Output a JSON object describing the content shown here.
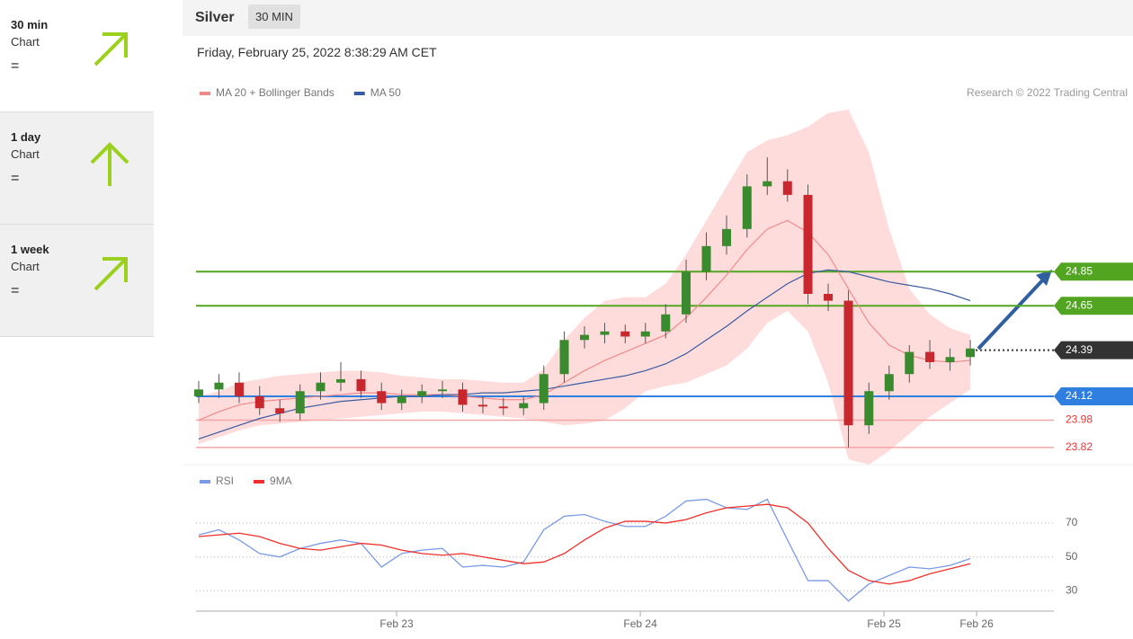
{
  "sidebar": [
    {
      "period": "30 min",
      "label": "Chart",
      "status": "="
    },
    {
      "period": "1 day",
      "label": "Chart",
      "status": "="
    },
    {
      "period": "1 week",
      "label": "Chart",
      "status": "="
    }
  ],
  "header": {
    "instrument": "Silver",
    "interval": "30 MIN",
    "timestamp": "Friday, February 25, 2022 8:38:29 AM CET"
  },
  "chart_data": [
    {
      "type": "candlestick",
      "credit": "Research © 2022 Trading Central",
      "x": [
        0.188,
        0.271,
        0.354,
        0.438,
        0.521,
        0.604,
        0.688,
        0.771,
        0.854,
        0.938,
        1.021,
        1.104,
        1.188,
        1.271,
        1.354,
        1.438,
        1.521,
        1.604,
        1.688,
        1.771,
        1.854,
        1.938,
        2.021,
        2.104,
        2.188,
        2.271,
        2.354,
        2.438,
        2.521,
        2.604,
        2.688,
        2.771,
        2.854,
        2.938,
        3.021,
        3.104,
        3.188,
        3.271,
        3.354
      ],
      "open": [
        24.12,
        24.16,
        24.2,
        24.12,
        24.05,
        24.02,
        24.15,
        24.2,
        24.22,
        24.15,
        24.08,
        24.12,
        24.15,
        24.16,
        24.07,
        24.06,
        24.05,
        24.08,
        24.25,
        24.45,
        24.48,
        24.5,
        24.47,
        24.5,
        24.6,
        24.85,
        25.0,
        25.1,
        25.35,
        25.38,
        25.3,
        24.72,
        24.68,
        23.95,
        24.15,
        24.25,
        24.38,
        24.32,
        24.35
      ],
      "high": [
        24.21,
        24.25,
        24.26,
        24.18,
        24.1,
        24.19,
        24.26,
        24.32,
        24.27,
        24.2,
        24.16,
        24.19,
        24.21,
        24.2,
        24.12,
        24.11,
        24.12,
        24.3,
        24.5,
        24.53,
        24.55,
        24.54,
        24.55,
        24.66,
        24.92,
        25.08,
        25.18,
        25.42,
        25.52,
        25.45,
        25.36,
        24.78,
        24.74,
        24.2,
        24.3,
        24.42,
        24.45,
        24.4,
        24.45
      ],
      "low": [
        24.08,
        24.11,
        24.08,
        24.01,
        23.97,
        23.98,
        24.1,
        24.15,
        24.11,
        24.04,
        24.04,
        24.08,
        24.11,
        24.03,
        24.02,
        24.01,
        24.01,
        24.04,
        24.2,
        24.4,
        24.43,
        24.43,
        24.43,
        24.46,
        24.55,
        24.8,
        24.95,
        25.05,
        25.3,
        25.26,
        24.66,
        24.62,
        23.82,
        23.9,
        24.1,
        24.2,
        24.28,
        24.27,
        24.3
      ],
      "close": [
        24.16,
        24.2,
        24.12,
        24.05,
        24.02,
        24.15,
        24.2,
        24.22,
        24.15,
        24.08,
        24.12,
        24.15,
        24.16,
        24.07,
        24.06,
        24.05,
        24.08,
        24.25,
        24.45,
        24.48,
        24.5,
        24.47,
        24.5,
        24.6,
        24.85,
        25.0,
        25.1,
        25.35,
        25.38,
        25.3,
        24.72,
        24.68,
        23.95,
        24.15,
        24.25,
        24.38,
        24.32,
        24.35,
        24.4
      ],
      "up_color": "#3a8a2e",
      "down_color": "#c8282d",
      "series": [
        {
          "name": "MA 20 + Bollinger Bands",
          "color": "#f08a8a",
          "values": [
            23.98,
            24.03,
            24.07,
            24.09,
            24.1,
            24.11,
            24.12,
            24.13,
            24.14,
            24.14,
            24.13,
            24.13,
            24.13,
            24.12,
            24.11,
            24.1,
            24.1,
            24.13,
            24.2,
            24.27,
            24.33,
            24.38,
            24.43,
            24.48,
            24.58,
            24.7,
            24.83,
            24.98,
            25.1,
            25.15,
            25.08,
            24.95,
            24.75,
            24.55,
            24.42,
            24.36,
            24.33,
            24.32,
            24.33
          ]
        },
        {
          "name": "MA 50",
          "color": "#3a5ba0",
          "values": [
            23.87,
            23.91,
            23.95,
            23.99,
            24.02,
            24.05,
            24.07,
            24.09,
            24.1,
            24.11,
            24.12,
            24.12,
            24.13,
            24.13,
            24.14,
            24.14,
            24.15,
            24.16,
            24.18,
            24.2,
            24.22,
            24.24,
            24.27,
            24.31,
            24.37,
            24.45,
            24.53,
            24.62,
            24.7,
            24.78,
            24.84,
            24.86,
            24.85,
            24.82,
            24.79,
            24.77,
            24.75,
            24.72,
            24.68
          ]
        }
      ],
      "band_color": "#ffd6d6",
      "band_upper": [
        24.12,
        24.15,
        24.2,
        24.22,
        24.24,
        24.25,
        24.26,
        24.27,
        24.27,
        24.26,
        24.24,
        24.23,
        24.22,
        24.22,
        24.21,
        24.2,
        24.2,
        24.28,
        24.45,
        24.58,
        24.68,
        24.7,
        24.7,
        24.78,
        24.95,
        25.15,
        25.35,
        25.55,
        25.62,
        25.65,
        25.7,
        25.78,
        25.8,
        25.55,
        25.1,
        24.75,
        24.6,
        24.52,
        24.48
      ],
      "band_lower": [
        23.84,
        23.88,
        23.92,
        23.95,
        23.96,
        23.97,
        23.98,
        23.99,
        24.0,
        24.01,
        24.02,
        24.03,
        24.03,
        24.02,
        24.01,
        24.0,
        23.99,
        23.97,
        23.95,
        23.96,
        23.98,
        24.05,
        24.15,
        24.18,
        24.2,
        24.25,
        24.3,
        24.4,
        24.55,
        24.62,
        24.5,
        24.2,
        23.75,
        23.72,
        23.8,
        23.9,
        24.0,
        24.08,
        24.16
      ],
      "levels": [
        24.85,
        24.65,
        24.39,
        24.12,
        23.98,
        23.82
      ],
      "level_colors": [
        "#52a520",
        "#52a520",
        "#333333",
        "#2f7fe0",
        "#f4a6a6",
        "#f4a6a6"
      ],
      "level_styles": [
        "boxed",
        "boxed",
        "boxed-dotted",
        "boxed",
        "text",
        "text"
      ],
      "xlim": [
        0.177,
        3.697
      ],
      "ylim": [
        23.73,
        25.81
      ]
    },
    {
      "type": "line",
      "x": [
        0.188,
        0.271,
        0.354,
        0.438,
        0.521,
        0.604,
        0.688,
        0.771,
        0.854,
        0.938,
        1.021,
        1.104,
        1.188,
        1.271,
        1.354,
        1.438,
        1.521,
        1.604,
        1.688,
        1.771,
        1.854,
        1.938,
        2.021,
        2.104,
        2.188,
        2.271,
        2.354,
        2.438,
        2.521,
        2.604,
        2.688,
        2.771,
        2.854,
        2.938,
        3.021,
        3.104,
        3.188,
        3.271,
        3.354
      ],
      "series": [
        {
          "name": "RSI",
          "color": "#7b9be6",
          "values": [
            63,
            66,
            60,
            52,
            50,
            55,
            58,
            60,
            58,
            44,
            52,
            54,
            55,
            44,
            45,
            44,
            47,
            66,
            74,
            75,
            71,
            68,
            68,
            74,
            83,
            84,
            79,
            78,
            84,
            60,
            36,
            36,
            24,
            34,
            39,
            44,
            43,
            45,
            49
          ]
        },
        {
          "name": "9MA",
          "color": "#f0302a",
          "values": [
            62,
            63,
            64,
            62,
            58,
            55,
            54,
            56,
            58,
            57,
            54,
            52,
            51,
            52,
            50,
            48,
            46,
            47,
            52,
            60,
            67,
            71,
            71,
            70,
            72,
            76,
            79,
            80,
            81,
            79,
            70,
            55,
            42,
            36,
            34,
            36,
            40,
            43,
            46
          ]
        }
      ],
      "xlim": [
        0.177,
        3.697
      ],
      "ylim": [
        18,
        88
      ],
      "yticks": [
        30,
        50,
        70
      ],
      "xticks": [
        {
          "value": 1,
          "label": "Feb 23"
        },
        {
          "value": 2,
          "label": "Feb 24"
        },
        {
          "value": 3,
          "label": "Feb 25"
        },
        {
          "value": 3.38,
          "label": "Feb 26"
        }
      ]
    }
  ]
}
